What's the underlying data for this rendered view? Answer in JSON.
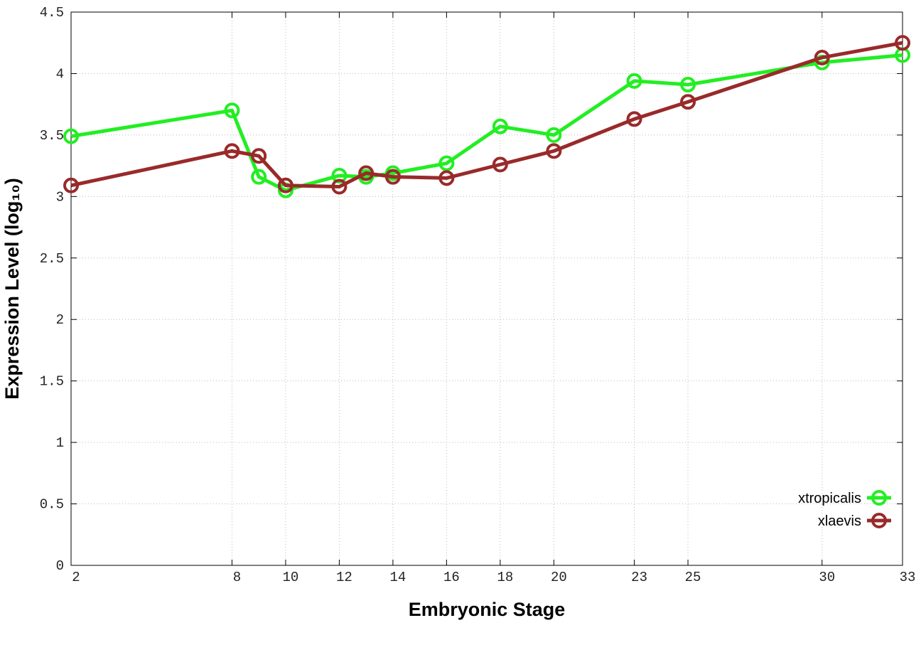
{
  "chart_data": {
    "type": "line",
    "x_label": "Embryonic Stage",
    "y_label": "Expression Level (log₁₀)",
    "xlim": [
      2,
      33
    ],
    "xticks": [
      2,
      8,
      10,
      12,
      14,
      16,
      18,
      20,
      23,
      25,
      30,
      33
    ],
    "ylim": [
      0,
      4.5
    ],
    "yticks": [
      0,
      0.5,
      1,
      1.5,
      2,
      2.5,
      3,
      3.5,
      4,
      4.5
    ],
    "grid": true,
    "legend": "lower right",
    "x": [
      2,
      8,
      9,
      10,
      12,
      13,
      14,
      16,
      18,
      20,
      23,
      25,
      30,
      33
    ],
    "series": [
      {
        "name": "xtropicalis",
        "color": "#22ee22",
        "values": [
          3.49,
          3.7,
          3.16,
          3.05,
          3.17,
          3.16,
          3.19,
          3.27,
          3.57,
          3.5,
          3.94,
          3.91,
          4.09,
          4.15
        ]
      },
      {
        "name": "xlaevis",
        "color": "#992a2a",
        "values": [
          3.09,
          3.37,
          3.33,
          3.09,
          3.08,
          3.19,
          3.16,
          3.15,
          3.26,
          3.37,
          3.63,
          3.77,
          4.13,
          4.25
        ]
      }
    ]
  }
}
